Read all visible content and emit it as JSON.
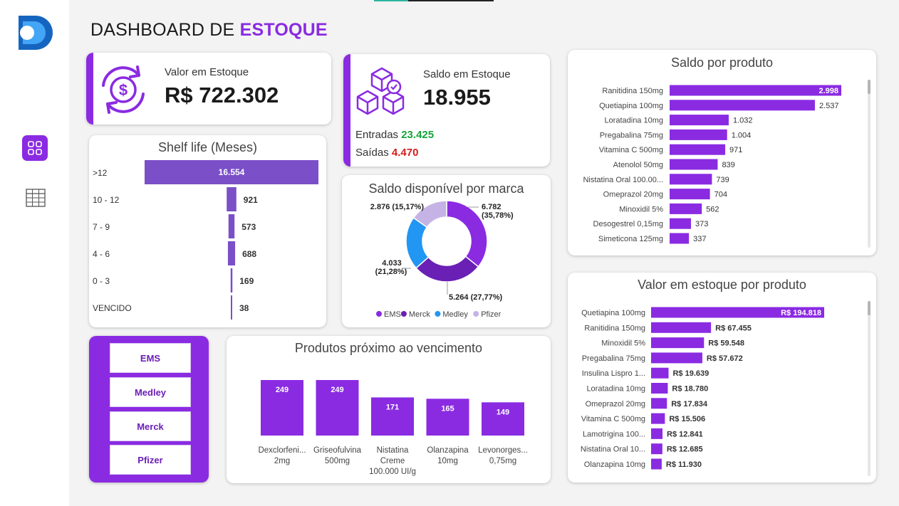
{
  "header": {
    "title_prefix": "DASHBOARD DE ",
    "title_accent": "ESTOQUE"
  },
  "sidebar": {
    "items": [
      "dashboard",
      "table"
    ]
  },
  "kpi_valor": {
    "label": "Valor em Estoque",
    "value": "R$ 722.302"
  },
  "kpi_saldo": {
    "label": "Saldo em Estoque",
    "value": "18.955",
    "entradas_label": "Entradas",
    "entradas_value": "23.425",
    "saidas_label": "Saídas",
    "saidas_value": "4.470"
  },
  "colors": {
    "accent": "#8a2be2",
    "shelf_bar": "#7b4fc7",
    "ems": "#8a2be2",
    "merck": "#6a1fb5",
    "medley": "#2196f3",
    "pfizer": "#c5b3e6",
    "green": "#17a43a",
    "red": "#d31d1d"
  },
  "slicer": {
    "options": [
      "EMS",
      "Medley",
      "Merck",
      "Pfizer"
    ]
  },
  "chart_data": [
    {
      "id": "shelf",
      "type": "bar",
      "title": "Shelf life (Meses)",
      "categories": [
        ">12",
        "10 - 12",
        "7 - 9",
        "4 - 6",
        "0 - 3",
        "VENCIDO"
      ],
      "values": [
        16554,
        921,
        573,
        688,
        169,
        38
      ],
      "labels": [
        "16.554",
        "921",
        "573",
        "688",
        "169",
        "38"
      ]
    },
    {
      "id": "brand",
      "type": "pie",
      "title": "Saldo disponível por marca",
      "categories": [
        "EMS",
        "Merck",
        "Medley",
        "Pfizer"
      ],
      "values": [
        6782,
        5264,
        4033,
        2876
      ],
      "labels": [
        "6.782 (35,78%)",
        "5.264 (27,77%)",
        "4.033 (21,28%)",
        "2.876 (15,17%)"
      ]
    },
    {
      "id": "saldo",
      "type": "bar",
      "title": "Saldo por produto",
      "categories": [
        "Ranitidina 150mg",
        "Quetiapina 100mg",
        "Loratadina 10mg",
        "Pregabalina 75mg",
        "Vitamina C 500mg",
        "Atenolol 50mg",
        "Nistatina Oral 100.00...",
        "Omeprazol 20mg",
        "Minoxidil 5%",
        "Desogestrel 0,15mg",
        "Simeticona 125mg"
      ],
      "values": [
        2998,
        2537,
        1032,
        1004,
        971,
        839,
        739,
        704,
        562,
        373,
        337
      ],
      "labels": [
        "2.998",
        "2.537",
        "1.032",
        "1.004",
        "971",
        "839",
        "739",
        "704",
        "562",
        "373",
        "337"
      ]
    },
    {
      "id": "valor",
      "type": "bar",
      "title": "Valor em estoque por produto",
      "categories": [
        "Quetiapina 100mg",
        "Ranitidina 150mg",
        "Minoxidil 5%",
        "Pregabalina 75mg",
        "Insulina Lispro 1...",
        "Loratadina 10mg",
        "Omeprazol 20mg",
        "Vitamina C 500mg",
        "Lamotrigina 100...",
        "Nistatina Oral 10...",
        "Olanzapina 10mg"
      ],
      "values": [
        194818,
        67455,
        59548,
        57672,
        19639,
        18780,
        17834,
        15506,
        12841,
        12685,
        11930
      ],
      "labels": [
        "R$ 194.818",
        "R$ 67.455",
        "R$ 59.548",
        "R$ 57.672",
        "R$ 19.639",
        "R$ 18.780",
        "R$ 17.834",
        "R$ 15.506",
        "R$ 12.841",
        "R$ 12.685",
        "R$ 11.930"
      ]
    },
    {
      "id": "venc",
      "type": "bar",
      "title": "Produtos próximo ao vencimento",
      "categories": [
        [
          "Dexclorfeni...",
          "2mg"
        ],
        [
          "Griseofulvina",
          "500mg"
        ],
        [
          "Nistatina",
          "Creme",
          "100.000 UI/g"
        ],
        [
          "Olanzapina",
          "10mg"
        ],
        [
          "Levonorges...",
          "0,75mg"
        ]
      ],
      "values": [
        249,
        249,
        171,
        165,
        149
      ],
      "labels": [
        "249",
        "249",
        "171",
        "165",
        "149"
      ]
    }
  ]
}
